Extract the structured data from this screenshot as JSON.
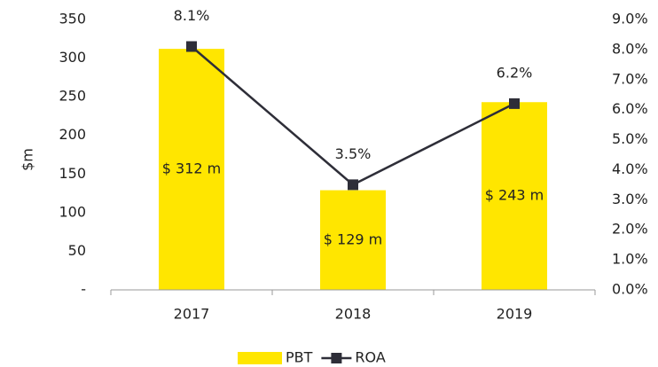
{
  "chart_data": {
    "type": "bar_line",
    "ylabel": "$m",
    "categories": [
      "2017",
      "2018",
      "2019"
    ],
    "series": [
      {
        "name": "PBT",
        "type": "bar",
        "color": "#ffe600",
        "values": [
          312,
          129,
          243
        ],
        "value_labels": [
          "$ 312 m",
          "$ 129 m",
          "$ 243 m"
        ]
      },
      {
        "name": "ROA",
        "type": "line",
        "axis": "y2",
        "color": "#2e2e38",
        "values": [
          8.1,
          3.5,
          6.2
        ],
        "value_labels": [
          "8.1%",
          "3.5%",
          "6.2%"
        ]
      }
    ],
    "ylim": [
      0,
      350
    ],
    "yticks": [
      {
        "value": 0,
        "label": "-"
      },
      50,
      100,
      150,
      200,
      250,
      300,
      350
    ],
    "y2lim": [
      0,
      9
    ],
    "y2ticks": [
      {
        "value": 0,
        "label": "0.0%"
      },
      {
        "value": 1,
        "label": "1.0%"
      },
      {
        "value": 2,
        "label": "2.0%"
      },
      {
        "value": 3,
        "label": "3.0%"
      },
      {
        "value": 4,
        "label": "4.0%"
      },
      {
        "value": 5,
        "label": "5.0%"
      },
      {
        "value": 6,
        "label": "6.0%"
      },
      {
        "value": 7,
        "label": "7.0%"
      },
      {
        "value": 8,
        "label": "8.0%"
      },
      {
        "value": 9,
        "label": "9.0%"
      }
    ],
    "grid": false,
    "legend": "bottom"
  }
}
